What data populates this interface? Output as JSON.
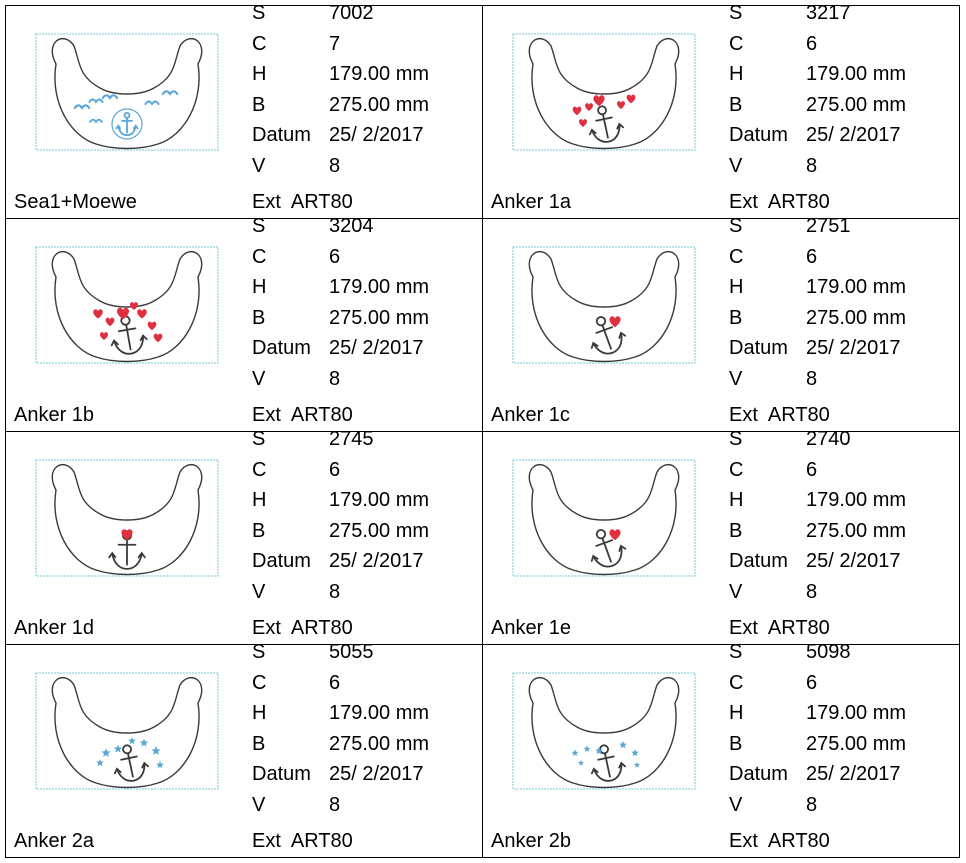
{
  "labels": {
    "s": "S",
    "c": "C",
    "h": "H",
    "b": "B",
    "datum": "Datum",
    "v": "V",
    "ext": "Ext"
  },
  "colors": {
    "outline": "#3a3a3a",
    "frame": "#7ac5d5",
    "sea_blue": "#5aa7d8",
    "heart_red": "#e03040"
  },
  "designs": [
    {
      "name": "Sea1+Moewe",
      "s": "7002",
      "c": "7",
      "h": "179.00 mm",
      "b": "275.00 mm",
      "datum": "25/ 2/2017",
      "v": "8",
      "ext": "ART80",
      "motif": "sea-gull-anchor"
    },
    {
      "name": "Anker 1a",
      "s": "3217",
      "c": "6",
      "h": "179.00 mm",
      "b": "275.00 mm",
      "datum": "25/ 2/2017",
      "v": "8",
      "ext": "ART80",
      "motif": "anchor-hearts-small"
    },
    {
      "name": "Anker 1b",
      "s": "3204",
      "c": "6",
      "h": "179.00 mm",
      "b": "275.00 mm",
      "datum": "25/ 2/2017",
      "v": "8",
      "ext": "ART80",
      "motif": "anchor-hearts-large"
    },
    {
      "name": "Anker 1c",
      "s": "2751",
      "c": "6",
      "h": "179.00 mm",
      "b": "275.00 mm",
      "datum": "25/ 2/2017",
      "v": "8",
      "ext": "ART80",
      "motif": "anchor-tilted-heart"
    },
    {
      "name": "Anker 1d",
      "s": "2745",
      "c": "6",
      "h": "179.00 mm",
      "b": "275.00 mm",
      "datum": "25/ 2/2017",
      "v": "8",
      "ext": "ART80",
      "motif": "anchor-upright-heart"
    },
    {
      "name": "Anker 1e",
      "s": "2740",
      "c": "6",
      "h": "179.00 mm",
      "b": "275.00 mm",
      "datum": "25/ 2/2017",
      "v": "8",
      "ext": "ART80",
      "motif": "anchor-tilted-heart"
    },
    {
      "name": "Anker 2a",
      "s": "5055",
      "c": "6",
      "h": "179.00 mm",
      "b": "275.00 mm",
      "datum": "25/ 2/2017",
      "v": "8",
      "ext": "ART80",
      "motif": "anchor-stars"
    },
    {
      "name": "Anker 2b",
      "s": "5098",
      "c": "6",
      "h": "179.00 mm",
      "b": "275.00 mm",
      "datum": "25/ 2/2017",
      "v": "8",
      "ext": "ART80",
      "motif": "anchor-stars-small"
    }
  ]
}
